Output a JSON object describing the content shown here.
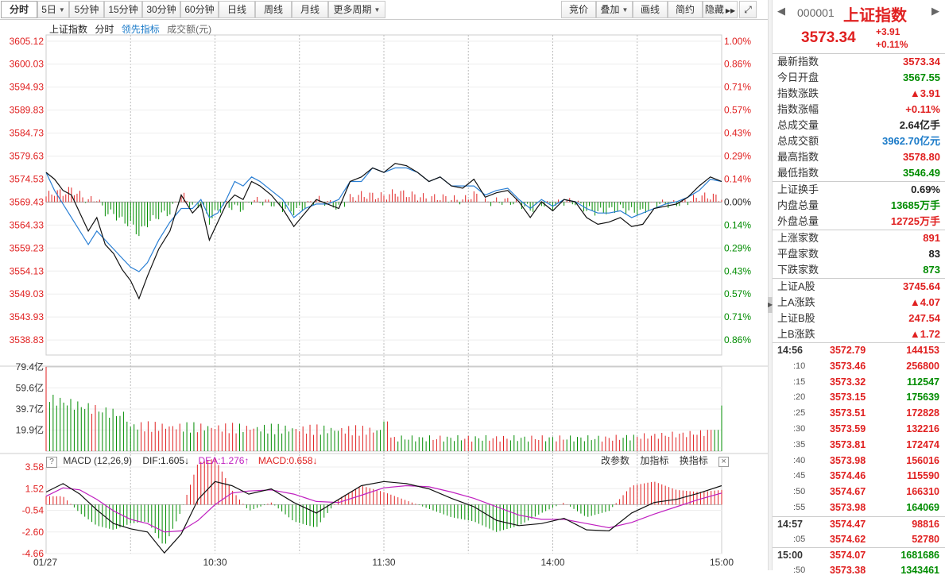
{
  "toolbar": {
    "period_tabs": [
      "分时",
      "5日",
      "5分钟",
      "15分钟",
      "30分钟",
      "60分钟",
      "日线",
      "周线",
      "月线",
      "更多周期"
    ],
    "right_tools": [
      "竞价",
      "叠加",
      "画线",
      "简约",
      "隐藏"
    ]
  },
  "legend": {
    "index": "上证指数",
    "mode": "分时",
    "lead": "领先指标",
    "amount": "成交额(元)"
  },
  "macd": {
    "title": "MACD (12,26,9)",
    "dif": "DIF:1.605",
    "dea": "DEA:1.276",
    "macd": "MACD:0.658",
    "tools": [
      "改参数",
      "加指标",
      "换指标"
    ],
    "close": "×"
  },
  "chart_data": {
    "type": "line",
    "title": "上证指数 分时",
    "price_axis": [
      "3605.12",
      "3600.03",
      "3594.93",
      "3589.83",
      "3584.73",
      "3579.63",
      "3574.53",
      "3569.43",
      "3564.33",
      "3559.23",
      "3554.13",
      "3549.03",
      "3543.93",
      "3538.83"
    ],
    "pct_axis": [
      "1.00%",
      "0.86%",
      "0.71%",
      "0.57%",
      "0.43%",
      "0.29%",
      "0.14%",
      "0.00%",
      "0.14%",
      "0.29%",
      "0.43%",
      "0.57%",
      "0.71%",
      "0.86%"
    ],
    "pct_colors": [
      "red",
      "red",
      "red",
      "red",
      "red",
      "red",
      "red",
      "black",
      "green",
      "green",
      "green",
      "green",
      "green",
      "green"
    ],
    "prev_close": 3569.43,
    "ylim": [
      3535.5,
      3606.5
    ],
    "x_labels": [
      "01/27",
      "10:30",
      "11:30",
      "14:00",
      "15:00"
    ],
    "x_label_minutes": [
      0,
      60,
      120,
      180,
      240
    ],
    "price_series": {
      "name": "上证指数",
      "minutes": [
        0,
        3,
        6,
        9,
        12,
        15,
        18,
        21,
        24,
        27,
        30,
        33,
        36,
        40,
        44,
        48,
        52,
        55,
        58,
        61,
        64,
        67,
        70,
        73,
        76,
        80,
        84,
        88,
        92,
        96,
        100,
        104,
        108,
        112,
        116,
        120,
        124,
        128,
        132,
        136,
        140,
        144,
        148,
        152,
        156,
        160,
        164,
        168,
        172,
        176,
        180,
        184,
        188,
        192,
        196,
        200,
        204,
        208,
        212,
        216,
        220,
        224,
        228,
        232,
        236,
        240
      ],
      "values": [
        3576,
        3574.5,
        3572,
        3571,
        3567,
        3563,
        3566,
        3560,
        3558,
        3554.5,
        3552,
        3548,
        3553,
        3559,
        3563,
        3571,
        3567,
        3569,
        3561,
        3565,
        3569,
        3571,
        3570,
        3574,
        3573,
        3571,
        3568,
        3564,
        3567,
        3570,
        3569,
        3568,
        3574,
        3575,
        3577,
        3576,
        3578,
        3577.5,
        3576,
        3574,
        3575,
        3573,
        3572.5,
        3574.5,
        3570.5,
        3571.5,
        3572,
        3569.5,
        3566,
        3569.5,
        3567.5,
        3570,
        3569.5,
        3566,
        3564.5,
        3565,
        3566,
        3564,
        3564.5,
        3568,
        3568.5,
        3569,
        3570.5,
        3573,
        3575,
        3574
      ]
    },
    "lead_series": {
      "name": "领先指标",
      "minutes": [
        0,
        3,
        6,
        9,
        12,
        15,
        18,
        21,
        24,
        27,
        30,
        33,
        36,
        40,
        44,
        48,
        52,
        55,
        58,
        61,
        64,
        67,
        70,
        73,
        76,
        80,
        84,
        88,
        92,
        96,
        100,
        104,
        108,
        112,
        116,
        120,
        124,
        128,
        132,
        136,
        140,
        144,
        148,
        152,
        156,
        160,
        164,
        168,
        172,
        176,
        180,
        184,
        188,
        192,
        196,
        200,
        204,
        208,
        212,
        216,
        220,
        224,
        228,
        232,
        236,
        240
      ],
      "values": [
        3576,
        3572,
        3569,
        3566,
        3563,
        3560,
        3563,
        3561,
        3559,
        3557,
        3555,
        3554,
        3556,
        3561,
        3565,
        3568,
        3568,
        3570,
        3566,
        3567,
        3570,
        3574,
        3573,
        3575,
        3574,
        3572,
        3570,
        3566,
        3568,
        3569,
        3569,
        3570,
        3574,
        3574,
        3577,
        3576,
        3577,
        3577,
        3576,
        3574,
        3575,
        3573,
        3573,
        3573,
        3571,
        3572,
        3572.5,
        3570,
        3568,
        3570,
        3568.5,
        3570,
        3569.5,
        3568,
        3567,
        3567,
        3567.5,
        3566,
        3567,
        3568,
        3569,
        3569.5,
        3570.5,
        3572,
        3574.5,
        3574
      ]
    },
    "amount_axis": [
      "79.4亿",
      "59.6亿",
      "39.7亿",
      "19.9亿"
    ],
    "amount_max": 79.4,
    "macd_axis": [
      "3.58",
      "1.52",
      "-0.54",
      "-2.60",
      "-4.66"
    ],
    "macd_ylim": [
      -4.66,
      3.58
    ],
    "dif_series": {
      "name": "DIF",
      "minutes": [
        0,
        6,
        12,
        18,
        24,
        30,
        36,
        42,
        48,
        54,
        60,
        66,
        72,
        80,
        88,
        96,
        104,
        112,
        120,
        128,
        136,
        144,
        152,
        160,
        168,
        176,
        184,
        192,
        200,
        208,
        216,
        224,
        232,
        240
      ],
      "values": [
        1.2,
        2.0,
        1.0,
        -0.5,
        -1.8,
        -2.3,
        -2.6,
        -4.6,
        -2.8,
        0.5,
        2.2,
        1.8,
        1.0,
        1.5,
        0.2,
        -0.8,
        0.5,
        1.8,
        2.2,
        2.0,
        1.5,
        0.6,
        -0.2,
        -1.5,
        -2.0,
        -1.8,
        -1.3,
        -2.4,
        -2.5,
        -0.8,
        0.2,
        0.5,
        1.1,
        1.8
      ]
    },
    "dea_series": {
      "name": "DEA",
      "minutes": [
        0,
        6,
        12,
        18,
        24,
        30,
        36,
        42,
        48,
        54,
        60,
        66,
        72,
        80,
        88,
        96,
        104,
        112,
        120,
        128,
        136,
        144,
        152,
        160,
        168,
        176,
        184,
        192,
        200,
        208,
        216,
        224,
        232,
        240
      ],
      "values": [
        0.8,
        1.6,
        1.4,
        0.5,
        -0.6,
        -1.4,
        -1.8,
        -2.6,
        -2.5,
        -1.5,
        0.0,
        1.1,
        1.3,
        1.4,
        1.0,
        0.3,
        0.2,
        0.9,
        1.6,
        1.8,
        1.7,
        1.2,
        0.6,
        -0.2,
        -1.0,
        -1.4,
        -1.4,
        -1.8,
        -2.2,
        -1.7,
        -0.9,
        -0.2,
        0.5,
        1.1
      ]
    }
  },
  "panel": {
    "code": "000001",
    "name": "上证指数",
    "price": "3573.34",
    "change": "+3.91",
    "change_pct": "+0.11%",
    "stats": [
      {
        "k": "最新指数",
        "v": "3573.34",
        "c": "red"
      },
      {
        "k": "今日开盘",
        "v": "3567.55",
        "c": "green"
      },
      {
        "k": "指数涨跌",
        "v": "▲3.91",
        "c": "red"
      },
      {
        "k": "指数涨幅",
        "v": "+0.11%",
        "c": "red"
      },
      {
        "k": "总成交量",
        "v": "2.64亿手",
        "c": "black"
      },
      {
        "k": "总成交额",
        "v": "3962.70亿元",
        "c": "blue"
      },
      {
        "k": "最高指数",
        "v": "3578.80",
        "c": "red"
      },
      {
        "k": "最低指数",
        "v": "3546.49",
        "c": "green"
      }
    ],
    "stats2": [
      {
        "k": "上证换手",
        "v": "0.69%",
        "c": "black"
      },
      {
        "k": "内盘总量",
        "v": "13685万手",
        "c": "green"
      },
      {
        "k": "外盘总量",
        "v": "12725万手",
        "c": "red"
      }
    ],
    "stats3": [
      {
        "k": "上涨家数",
        "v": "891",
        "c": "red"
      },
      {
        "k": "平盘家数",
        "v": "83",
        "c": "black"
      },
      {
        "k": "下跌家数",
        "v": "873",
        "c": "green"
      }
    ],
    "stats4": [
      {
        "k": "上证A股",
        "v": "3745.64",
        "c": "red"
      },
      {
        "k": "上A涨跌",
        "v": "▲4.07",
        "c": "red"
      },
      {
        "k": "上证B股",
        "v": "247.54",
        "c": "red"
      },
      {
        "k": "上B涨跌",
        "v": "▲1.72",
        "c": "red"
      }
    ],
    "ticks": [
      {
        "t": "14:56",
        "p": "3572.79",
        "v": "144153",
        "vc": "red",
        "sub": false
      },
      {
        "t": ":10",
        "p": "3573.46",
        "v": "256800",
        "vc": "red",
        "sub": true
      },
      {
        "t": ":15",
        "p": "3573.32",
        "v": "112547",
        "vc": "green",
        "sub": true
      },
      {
        "t": ":20",
        "p": "3573.15",
        "v": "175639",
        "vc": "green",
        "sub": true
      },
      {
        "t": ":25",
        "p": "3573.51",
        "v": "172828",
        "vc": "red",
        "sub": true
      },
      {
        "t": ":30",
        "p": "3573.59",
        "v": "132216",
        "vc": "red",
        "sub": true
      },
      {
        "t": ":35",
        "p": "3573.81",
        "v": "172474",
        "vc": "red",
        "sub": true
      },
      {
        "t": ":40",
        "p": "3573.98",
        "v": "156016",
        "vc": "red",
        "sub": true
      },
      {
        "t": ":45",
        "p": "3574.46",
        "v": "115590",
        "vc": "red",
        "sub": true
      },
      {
        "t": ":50",
        "p": "3574.67",
        "v": "166310",
        "vc": "red",
        "sub": true
      },
      {
        "t": ":55",
        "p": "3573.98",
        "v": "164069",
        "vc": "green",
        "sub": true
      },
      {
        "t": "14:57",
        "p": "3574.47",
        "v": "98816",
        "vc": "red",
        "sub": false
      },
      {
        "t": ":05",
        "p": "3574.62",
        "v": "52780",
        "vc": "red",
        "sub": true
      },
      {
        "t": "15:00",
        "p": "3574.07",
        "v": "1681686",
        "vc": "green",
        "sub": false
      },
      {
        "t": ":50",
        "p": "3573.38",
        "v": "1343461",
        "vc": "green",
        "sub": true
      }
    ]
  }
}
